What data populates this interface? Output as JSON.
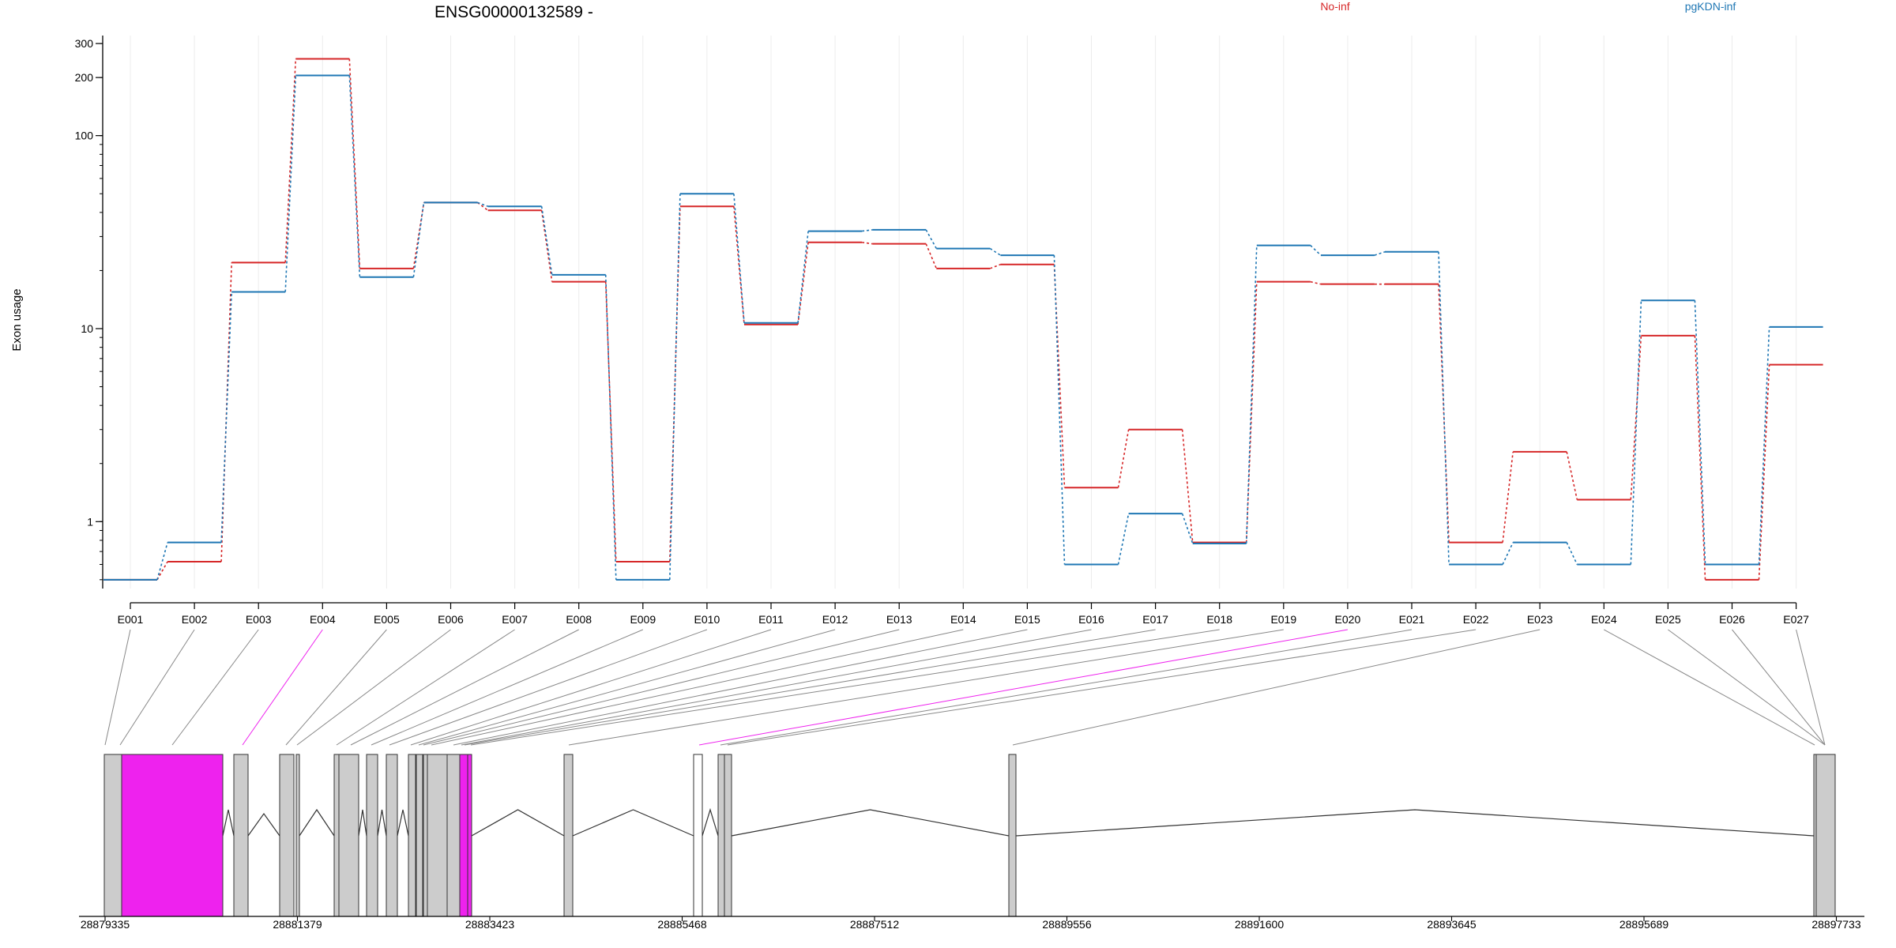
{
  "chart_data": {
    "type": "line",
    "title": "ENSG00000132589 -",
    "ylabel": "Exon usage",
    "yscale": "log",
    "ylim": [
      0.45,
      330
    ],
    "yticks": [
      1,
      10,
      100,
      200,
      300
    ],
    "legend_placement": "top-right",
    "categories": [
      "E001",
      "E002",
      "E003",
      "E004",
      "E005",
      "E006",
      "E007",
      "E008",
      "E009",
      "E010",
      "E011",
      "E012",
      "E013",
      "E014",
      "E015",
      "E016",
      "E017",
      "E018",
      "E019",
      "E020",
      "E021",
      "E022",
      "E023",
      "E024",
      "E025",
      "E026",
      "E027"
    ],
    "series": [
      {
        "name": "No-inf",
        "color": "#d62728",
        "values": [
          0.5,
          0.62,
          22,
          250,
          20.5,
          45,
          41,
          17.5,
          0.62,
          43,
          10.5,
          28,
          27.5,
          20.5,
          21.5,
          1.5,
          3.0,
          0.78,
          17.5,
          17,
          17,
          0.78,
          2.3,
          1.3,
          9.2,
          0.5,
          6.5
        ]
      },
      {
        "name": "pgKDN-inf",
        "color": "#1f77b4",
        "values": [
          0.5,
          0.78,
          15.5,
          205,
          18.5,
          45,
          43,
          19,
          0.5,
          50,
          10.7,
          32,
          32.5,
          26,
          24,
          0.6,
          1.1,
          0.77,
          27,
          24,
          25,
          0.6,
          0.78,
          0.6,
          14,
          0.6,
          10.2
        ]
      }
    ],
    "gene_model": {
      "axis_ticks": [
        "28879335",
        "28881379",
        "28883423",
        "28885468",
        "28887512",
        "28889556",
        "28891600",
        "28893645",
        "28895689",
        "28897733"
      ],
      "exon_colors": {
        "default": "#cccccc",
        "highlight": "#ee22ee",
        "connector": "#888888"
      }
    }
  }
}
